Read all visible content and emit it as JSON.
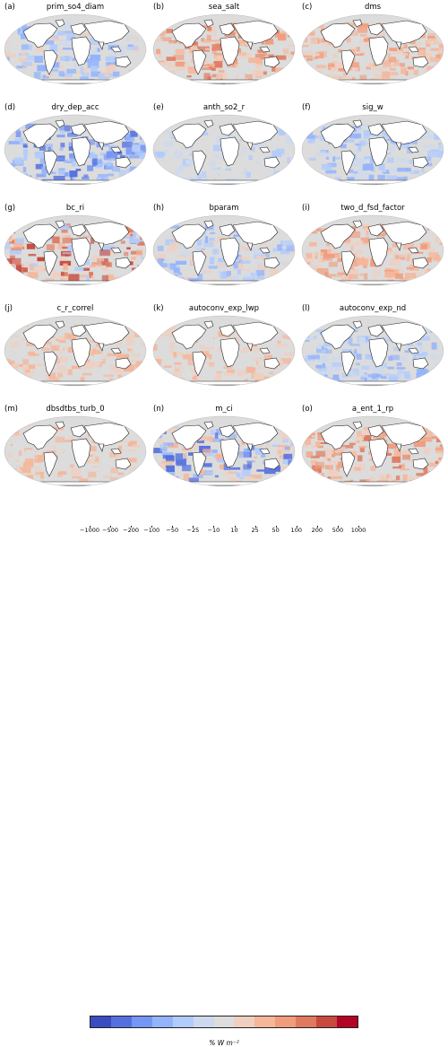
{
  "panels": [
    {
      "label": "(a)",
      "title": "prim_so4_diam",
      "mode": "blue-mixed"
    },
    {
      "label": "(b)",
      "title": "sea_salt",
      "mode": "red-strong"
    },
    {
      "label": "(c)",
      "title": "dms",
      "mode": "red-mid"
    },
    {
      "label": "(d)",
      "title": "dry_dep_acc",
      "mode": "blue-strong"
    },
    {
      "label": "(e)",
      "title": "anth_so2_r",
      "mode": "blue-light"
    },
    {
      "label": "(f)",
      "title": "sig_w",
      "mode": "blue-mid"
    },
    {
      "label": "(g)",
      "title": "bc_ri",
      "mode": "red-mixed"
    },
    {
      "label": "(h)",
      "title": "bparam",
      "mode": "blue-mixed"
    },
    {
      "label": "(i)",
      "title": "two_d_fsd_factor",
      "mode": "red-mid"
    },
    {
      "label": "(j)",
      "title": "c_r_correl",
      "mode": "red-light"
    },
    {
      "label": "(k)",
      "title": "autoconv_exp_lwp",
      "mode": "red-light"
    },
    {
      "label": "(l)",
      "title": "autoconv_exp_nd",
      "mode": "blue-mid"
    },
    {
      "label": "(m)",
      "title": "dbsdtbs_turb_0",
      "mode": "red-light"
    },
    {
      "label": "(n)",
      "title": "m_ci",
      "mode": "mixed"
    },
    {
      "label": "(o)",
      "title": "a_ent_1_rp",
      "mode": "red-strong"
    }
  ],
  "colorbar": {
    "colors": [
      "#3b4cc0",
      "#5470de",
      "#7496f5",
      "#93b3fb",
      "#b1cbfc",
      "#cdd9ee",
      "#dddddd",
      "#efcfbf",
      "#f5b69a",
      "#f19c7c",
      "#e07a5f",
      "#c84a3f",
      "#b40426"
    ],
    "ticks": [
      "−1000",
      "−500",
      "−200",
      "−100",
      "−50",
      "−25",
      "−10",
      "10",
      "25",
      "50",
      "100",
      "200",
      "500",
      "1000"
    ],
    "unit": "% W m⁻²"
  },
  "colors": {
    "gray": "#dcdcdc",
    "coast": "#222222"
  }
}
